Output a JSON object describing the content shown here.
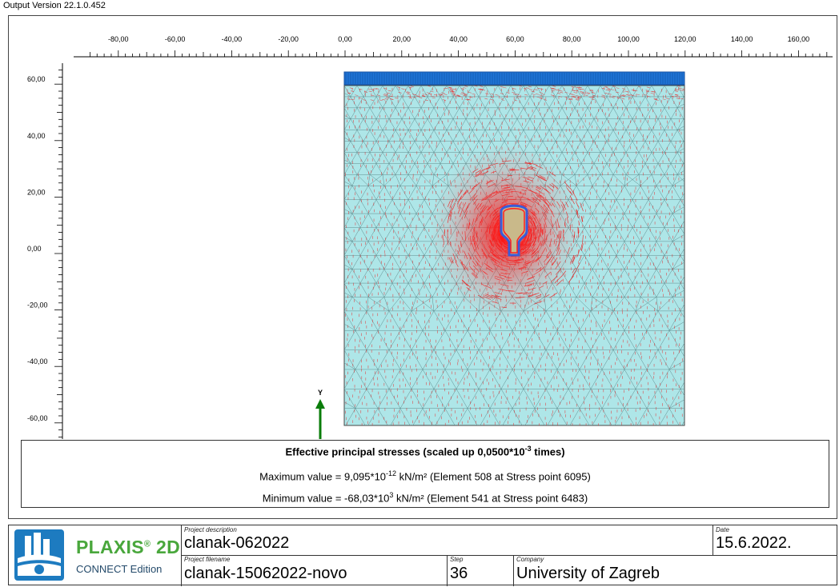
{
  "version_text": "Output Version 22.1.0.452",
  "axes": {
    "x_ticks": [
      "-80,00",
      "-60,00",
      "-40,00",
      "-20,00",
      "0,00",
      "20,00",
      "40,00",
      "60,00",
      "80,00",
      "100,00",
      "120,00",
      "140,00",
      "160,00"
    ],
    "y_ticks": [
      "60,00",
      "40,00",
      "20,00",
      "0,00",
      "-20,00",
      "-40,00",
      "-60,00"
    ],
    "y_axis_label": "Y"
  },
  "legend": {
    "title": "Effective principal stresses (scaled up 0,0500*10",
    "title_exp": "-3",
    "title_suffix": " times)",
    "max_prefix": "Maximum value = 9,095*10",
    "max_exp": "-12",
    "max_suffix": " kN/m² (Element 508 at Stress point 6095)",
    "min_prefix": "Minimum value = -68,03*10",
    "min_exp": "3",
    "min_suffix": " kN/m² (Element 541 at Stress point 6483)"
  },
  "footer": {
    "brand": "PLAXIS",
    "brand_reg": "®",
    "brand_2d": " 2D",
    "brand_sub": "CONNECT Edition",
    "project_description_caption": "Project description",
    "project_description": "clanak-062022",
    "date_caption": "Date",
    "date": "15.6.2022.",
    "project_filename_caption": "Project filename",
    "project_filename": "clanak-15062022-novo",
    "step_caption": "Step",
    "step": "36",
    "company_caption": "Company",
    "company": "University of Zagreb"
  },
  "colors": {
    "soil": "#aee6e8",
    "mesh": "#5f8c8e",
    "stress": "#ee1c1c",
    "load": "#1f74d6",
    "tunnel_lining": "#3a5bd8",
    "tunnel_fill": "#c9b98a",
    "axis_arrow": "#0a7d0a",
    "brand_green": "#49a73c"
  }
}
